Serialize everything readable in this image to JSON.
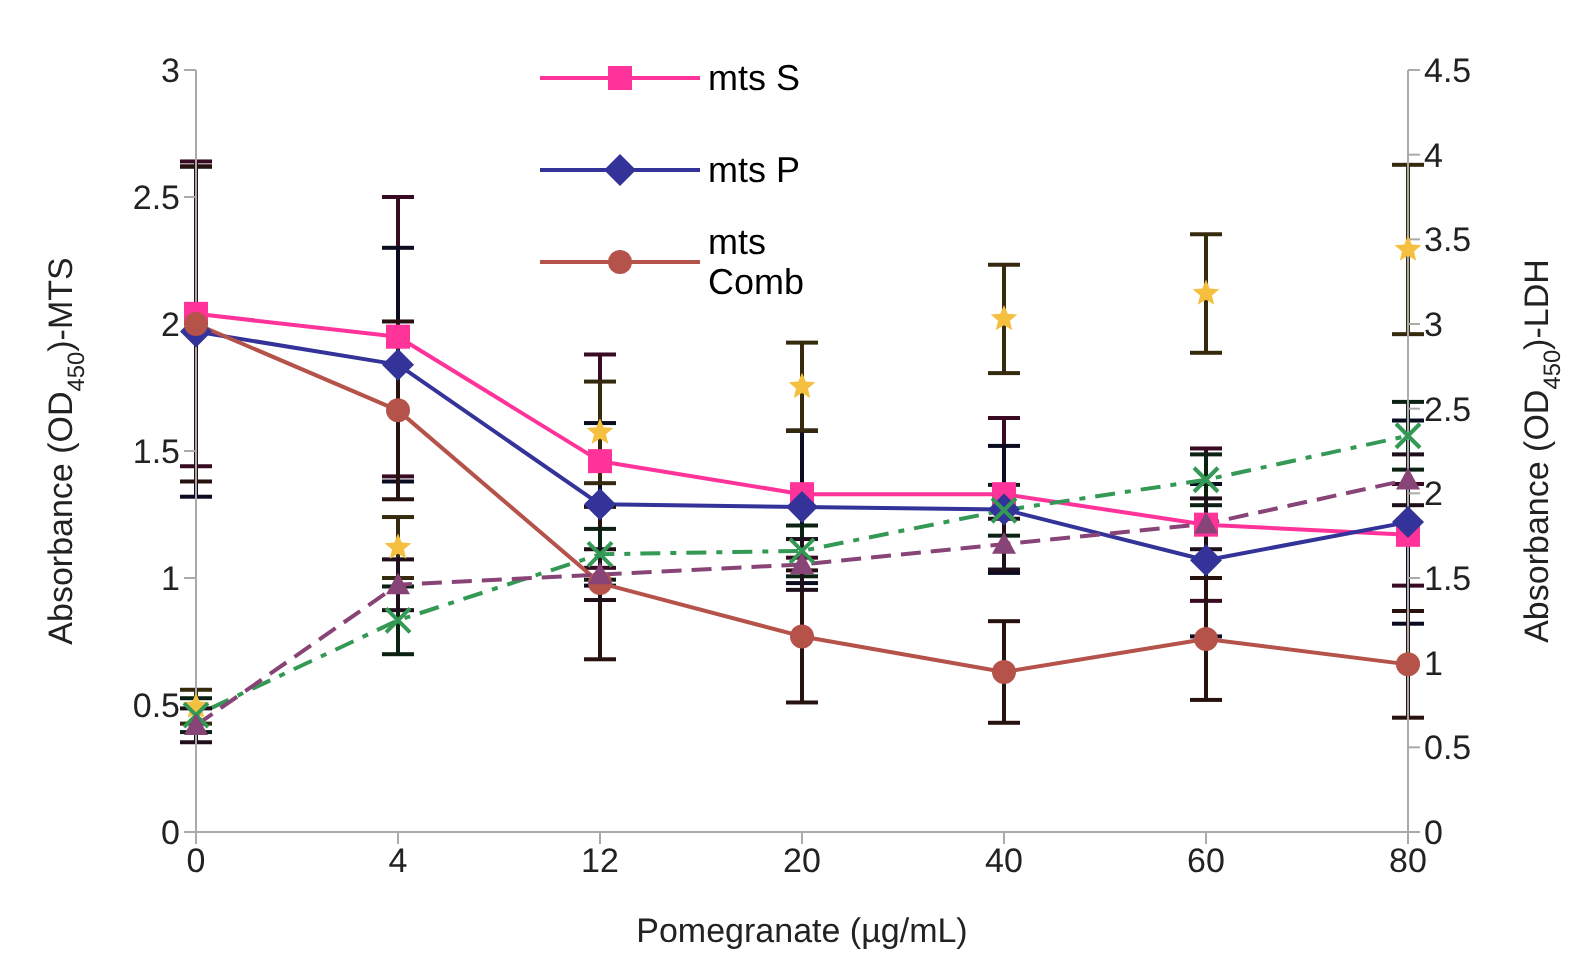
{
  "chart_data": {
    "type": "line",
    "xlabel": "Pomegranate (µg/mL)",
    "ylabel": "Absorbance (OD$_{450}$)-MTS",
    "y2label": "Absorbance (OD$_{450}$)-LDH",
    "categories": [
      "0",
      "4",
      "12",
      "20",
      "40",
      "60",
      "80"
    ],
    "series": [
      {
        "name": "mts S",
        "color": "#ff3399",
        "marker": "square",
        "line_style": "solid",
        "values": [
          2.04,
          1.95,
          1.46,
          1.33,
          1.33,
          1.21,
          1.17
        ],
        "errors": [
          0.6,
          0.55,
          0.42,
          0.25,
          0.3,
          0.3,
          0.2
        ]
      },
      {
        "name": "mts P",
        "color": "#333399",
        "marker": "diamond",
        "line_style": "solid",
        "values": [
          1.97,
          1.84,
          1.29,
          1.28,
          1.27,
          1.07,
          1.22
        ],
        "errors": [
          0.65,
          0.46,
          0.32,
          0.3,
          0.25,
          0.3,
          0.4
        ]
      },
      {
        "name": "mts Comb",
        "color": "#b5524a",
        "marker": "circle",
        "line_style": "solid",
        "values": [
          2.0,
          1.66,
          0.98,
          0.77,
          0.63,
          0.76,
          0.66
        ],
        "errors": [
          0.62,
          0.35,
          0.3,
          0.26,
          0.2,
          0.24,
          0.21
        ]
      },
      {
        "type": "scatter",
        "axis": "y2",
        "color": "#f5c040",
        "marker": "star",
        "values": [
          0.74,
          1.68,
          2.36,
          2.63,
          3.03,
          3.18,
          3.44
        ],
        "errors": [
          0.1,
          0.18,
          0.3,
          0.26,
          0.32,
          0.35,
          0.5
        ]
      },
      {
        "axis": "y2",
        "color": "#339955",
        "marker": "cross",
        "line_style": "dotted",
        "values": [
          0.69,
          1.25,
          1.64,
          1.66,
          1.9,
          2.08,
          2.34
        ],
        "errors": [
          0.1,
          0.2,
          0.15,
          0.15,
          0.15,
          0.15,
          0.2
        ]
      },
      {
        "axis": "y2",
        "color": "#884477",
        "marker": "triangle",
        "line_style": "dashed",
        "values": [
          0.63,
          1.46,
          1.52,
          1.58,
          1.7,
          1.82,
          2.08
        ],
        "errors": [
          0.1,
          0.15,
          0.15,
          0.15,
          0.15,
          0.15,
          0.15
        ]
      }
    ],
    "ylim": [
      0,
      3
    ],
    "yticks": [
      0,
      0.5,
      1,
      1.5,
      2,
      2.5,
      3
    ],
    "y2lim": [
      0,
      4.5
    ],
    "y2ticks": [
      0,
      0.5,
      1,
      1.5,
      2,
      2.5,
      3,
      3.5,
      4,
      4.5
    ],
    "grid": false,
    "legend": "top"
  }
}
